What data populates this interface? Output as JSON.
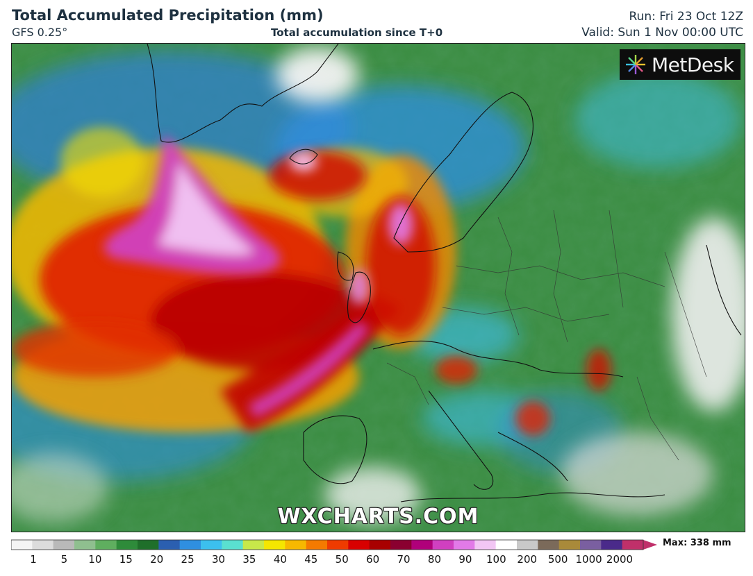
{
  "header": {
    "title": "Total Accumulated Precipitation (mm)",
    "model": "GFS 0.25°",
    "subtitle": "Total accumulation since T+0",
    "run": "Run: Fri 23 Oct 12Z",
    "valid": "Valid: Sun 1 Nov 00:00 UTC"
  },
  "branding": {
    "logo_text": "MetDesk",
    "watermark": "WXCHARTS.COM"
  },
  "legend": {
    "max_label": "Max: 338 mm",
    "ticks": [
      "1",
      "5",
      "10",
      "15",
      "20",
      "25",
      "30",
      "35",
      "40",
      "45",
      "50",
      "60",
      "70",
      "80",
      "90",
      "100",
      "200",
      "500",
      "1000",
      "2000"
    ],
    "colors": [
      "#f4f4f4",
      "#dcdcdc",
      "#b9b9b9",
      "#8fbf8f",
      "#5fae5f",
      "#2e8b3a",
      "#1f6f2a",
      "#2b5fb0",
      "#2f8fe0",
      "#3cc0ee",
      "#5ae0d0",
      "#c8e84a",
      "#f5e600",
      "#f7b800",
      "#f57a00",
      "#ef3b00",
      "#d80000",
      "#a80000",
      "#8a0030",
      "#b0007a",
      "#d040c0",
      "#e27ae8",
      "#f2c6f4",
      "#ffffff",
      "#c9c9c9",
      "#7b6a5a",
      "#a98a3a",
      "#7a5fa0",
      "#4a2a8a",
      "#c0306a"
    ],
    "units": "mm"
  }
}
